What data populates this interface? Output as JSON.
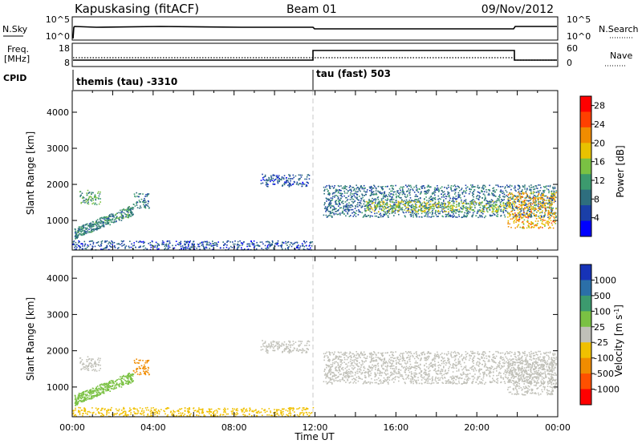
{
  "header": {
    "station": "Kapuskasing (fitACF)",
    "beam": "Beam 01",
    "date": "09/Nov/2012"
  },
  "noise_panel": {
    "left_label": "N.Sky",
    "left_ticks": [
      "10^5",
      "10^0"
    ],
    "right_label": "N.Search",
    "right_ticks": [
      "10^5",
      "10^0"
    ]
  },
  "freq_panel": {
    "left_label_1": "Freq.",
    "left_label_2": "[MHz]",
    "left_ticks": [
      "18",
      "8"
    ],
    "right_label": "Nave",
    "right_ticks": [
      "60",
      "0"
    ]
  },
  "cpid": {
    "label": "CPID",
    "segments": [
      {
        "text": "themis (tau) -3310"
      },
      {
        "text": "tau (fast) 503"
      }
    ]
  },
  "colors": {
    "power_scale": [
      "#0000ff",
      "#1a3fa8",
      "#2e6e7e",
      "#3c9a6e",
      "#7ac143",
      "#e8c200",
      "#f08c00",
      "#ff4000",
      "#ff0000"
    ],
    "velocity_scale": [
      "#1733b8",
      "#2b6fa8",
      "#3c9a6e",
      "#7ac143",
      "#c0c0b8",
      "#f0c000",
      "#f08c00",
      "#ff5000",
      "#ff0000"
    ]
  },
  "chart_data": [
    {
      "type": "heatmap",
      "title": "Power",
      "ylabel": "Slant Range [km]",
      "ylim": [
        180,
        4600
      ],
      "yticks": [
        "1000",
        "2000",
        "3000",
        "4000"
      ],
      "xlim": [
        "00:00",
        "24:00"
      ],
      "colorbar": {
        "label": "Power [dB]",
        "ticks": [
          "4",
          "8",
          "12",
          "16",
          "20",
          "24",
          "28"
        ],
        "range": [
          0,
          30
        ]
      },
      "scatter_regions": [
        {
          "t": [
            0.3,
            1.4
          ],
          "range_km": [
            1450,
            1850
          ],
          "value": 12
        },
        {
          "t": [
            0.1,
            3.0
          ],
          "range_km": [
            650,
            1400
          ],
          "value": 10
        },
        {
          "t": [
            3.0,
            3.8
          ],
          "range_km": [
            1350,
            1800
          ],
          "value": 9
        },
        {
          "t": [
            9.3,
            11.7
          ],
          "range_km": [
            1950,
            2300
          ],
          "value": 6
        },
        {
          "t": [
            12.4,
            23.9
          ],
          "range_km": [
            1100,
            2000
          ],
          "value": 8
        },
        {
          "t": [
            14.5,
            21.5
          ],
          "range_km": [
            1250,
            1550
          ],
          "value": 16
        },
        {
          "t": [
            21.5,
            23.9
          ],
          "range_km": [
            800,
            1800
          ],
          "value": 20
        },
        {
          "t": [
            0.0,
            11.9
          ],
          "range_km": [
            200,
            450
          ],
          "value": 6
        }
      ]
    },
    {
      "type": "heatmap",
      "title": "Velocity",
      "ylabel": "Slant Range [km]",
      "ylim": [
        180,
        4600
      ],
      "yticks": [
        "1000",
        "2000",
        "3000",
        "4000"
      ],
      "xlim": [
        "00:00",
        "24:00"
      ],
      "xticks": [
        "00:00",
        "04:00",
        "08:00",
        "12:00",
        "16:00",
        "20:00",
        "00:00"
      ],
      "xlabel": "Time UT",
      "colorbar": {
        "label": "Velocity [m s^-1]",
        "ticks": [
          "1000",
          "500",
          "100",
          "25",
          "-25",
          "-100",
          "-500",
          "-1000"
        ]
      },
      "scatter_regions": [
        {
          "t": [
            0.3,
            1.4
          ],
          "range_km": [
            1450,
            1850
          ],
          "value": 0
        },
        {
          "t": [
            0.1,
            3.0
          ],
          "range_km": [
            650,
            1400
          ],
          "value": 60
        },
        {
          "t": [
            3.0,
            3.8
          ],
          "range_km": [
            1350,
            1800
          ],
          "value": -200
        },
        {
          "t": [
            9.3,
            11.7
          ],
          "range_km": [
            1950,
            2300
          ],
          "value": 0
        },
        {
          "t": [
            12.4,
            23.9
          ],
          "range_km": [
            1100,
            2000
          ],
          "value": 0
        },
        {
          "t": [
            21.5,
            23.9
          ],
          "range_km": [
            800,
            1800
          ],
          "value": 0
        },
        {
          "t": [
            0.0,
            11.9
          ],
          "range_km": [
            200,
            450
          ],
          "value": -60
        }
      ]
    }
  ]
}
